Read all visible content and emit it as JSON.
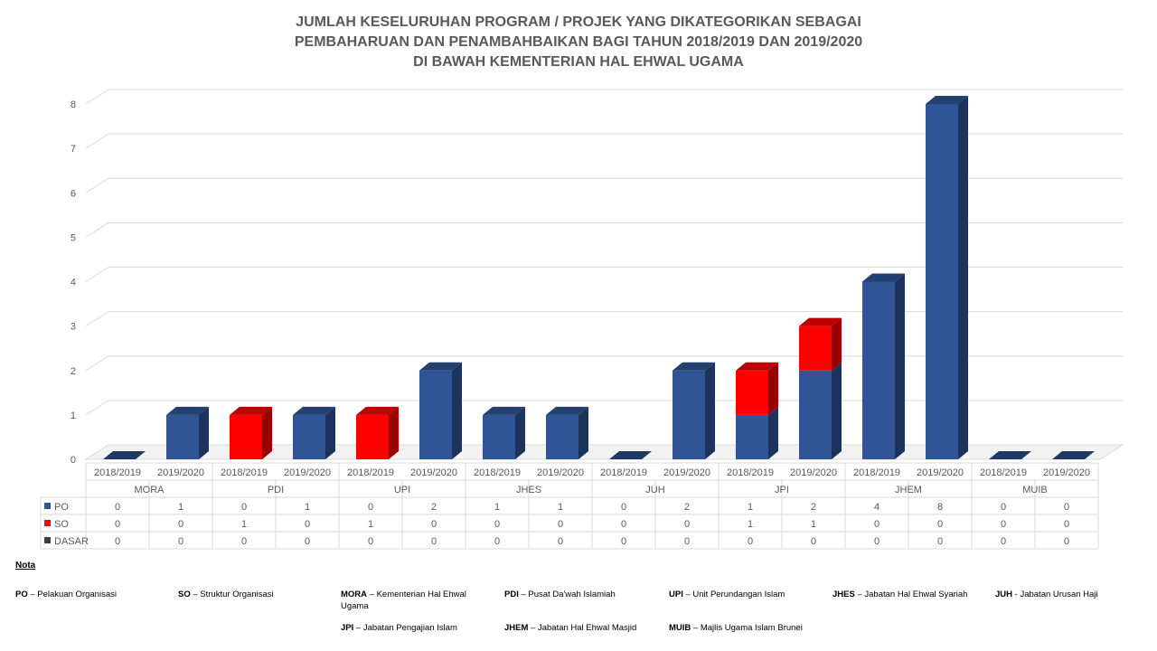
{
  "title": {
    "line1": "JUMLAH KESELURUHAN PROGRAM / PROJEK YANG DIKATEGORIKAN SEBAGAI",
    "line2": "PEMBAHARUAN DAN PENAMBAHBAIKAN  BAGI TAHUN 2018/2019 DAN 2019/2020",
    "line3": "DI BAWAH KEMENTERIAN HAL EHWAL UGAMA"
  },
  "chart_data": {
    "type": "bar",
    "stacked": true,
    "three_d": true,
    "groups": [
      "MORA",
      "PDI",
      "UPI",
      "JHES",
      "JUH",
      "JPI",
      "JHEM",
      "MUIB"
    ],
    "years": [
      "2018/2019",
      "2019/2020"
    ],
    "y_ticks": [
      "0",
      "1",
      "2",
      "3",
      "4",
      "5",
      "6",
      "7",
      "8"
    ],
    "ylim": [
      0,
      8
    ],
    "grid": true,
    "legend_placement": "data table",
    "series": [
      {
        "name": "PO",
        "color": "#2F5597",
        "values": [
          0,
          1,
          0,
          1,
          0,
          2,
          1,
          1,
          0,
          2,
          1,
          2,
          4,
          8,
          0,
          0
        ]
      },
      {
        "name": "SO",
        "color": "#FF0000",
        "values": [
          0,
          0,
          1,
          0,
          1,
          0,
          0,
          0,
          0,
          0,
          1,
          1,
          0,
          0,
          0,
          0
        ]
      },
      {
        "name": "DASAR",
        "color": "#404040",
        "values": [
          0,
          0,
          0,
          0,
          0,
          0,
          0,
          0,
          0,
          0,
          0,
          0,
          0,
          0,
          0,
          0
        ]
      }
    ]
  },
  "nota": {
    "heading": "Nota",
    "items": [
      {
        "abbr": "PO",
        "text": " – Pelakuan Organisasi"
      },
      {
        "abbr": "SO",
        "text": " – Struktur Organisasi"
      },
      {
        "abbr": "MORA",
        "text": " – Kementerian Hal Ehwal Ugama"
      },
      {
        "abbr": "PDI",
        "text": " – Pusat Da'wah Islamiah"
      },
      {
        "abbr": "UPI",
        "text": " – Unit Perundangan Islam"
      },
      {
        "abbr": "JHES",
        "text": " – Jabatan Hal Ehwal Syariah"
      },
      {
        "abbr": "JUH",
        "text": "  - Jabatan Urusan Haji"
      },
      {
        "abbr": "JPI",
        "text": " – Jabatan Pengajian Islam"
      },
      {
        "abbr": "JHEM",
        "text": " – Jabatan Hal Ehwal Masjid"
      },
      {
        "abbr": "MUIB",
        "text": " – Majlis Ugama Islam Brunei"
      }
    ]
  }
}
